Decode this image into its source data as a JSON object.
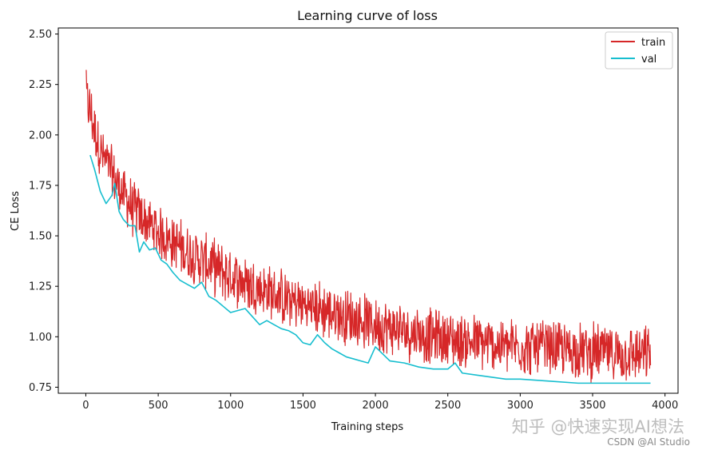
{
  "chart_data": {
    "type": "line",
    "title": "Learning curve of loss",
    "xlabel": "Training steps",
    "ylabel": "CE Loss",
    "xlim": [
      -190,
      4090
    ],
    "ylim": [
      0.72,
      2.53
    ],
    "xticks": [
      0,
      500,
      1000,
      1500,
      2000,
      2500,
      3000,
      3500,
      4000
    ],
    "xtick_labels": [
      "0",
      "500",
      "1000",
      "1500",
      "2000",
      "2500",
      "3000",
      "3500",
      "4000"
    ],
    "yticks": [
      0.75,
      1.0,
      1.25,
      1.5,
      1.75,
      2.0,
      2.25,
      2.5
    ],
    "ytick_labels": [
      "0.75",
      "1.00",
      "1.25",
      "1.50",
      "1.75",
      "2.00",
      "2.25",
      "2.50"
    ],
    "grid": false,
    "legend_position": "top-right",
    "series": [
      {
        "name": "train",
        "color": "#d62728",
        "x": [
          0,
          100,
          200,
          300,
          400,
          500,
          600,
          700,
          800,
          900,
          1000,
          1100,
          1200,
          1300,
          1400,
          1500,
          1600,
          1700,
          1800,
          1900,
          2000,
          2200,
          2400,
          2600,
          2800,
          3000,
          3200,
          3400,
          3600,
          3800,
          3900
        ],
        "values": [
          2.2,
          1.92,
          1.78,
          1.66,
          1.58,
          1.52,
          1.47,
          1.42,
          1.38,
          1.34,
          1.3,
          1.27,
          1.24,
          1.21,
          1.18,
          1.16,
          1.14,
          1.12,
          1.1,
          1.08,
          1.06,
          1.03,
          1.0,
          0.98,
          0.96,
          0.95,
          0.94,
          0.93,
          0.92,
          0.91,
          0.91
        ],
        "noise_amplitude_approx": 0.12,
        "peak": {
          "x": 0,
          "y": 2.32
        }
      },
      {
        "name": "val",
        "color": "#17becf",
        "x": [
          30,
          60,
          100,
          140,
          180,
          200,
          230,
          260,
          300,
          340,
          370,
          400,
          440,
          480,
          520,
          560,
          600,
          650,
          700,
          750,
          800,
          850,
          900,
          950,
          1000,
          1050,
          1100,
          1150,
          1200,
          1250,
          1300,
          1350,
          1400,
          1450,
          1500,
          1550,
          1600,
          1650,
          1700,
          1750,
          1800,
          1850,
          1900,
          1950,
          2000,
          2100,
          2200,
          2300,
          2400,
          2500,
          2550,
          2600,
          2700,
          2800,
          2900,
          3000,
          3200,
          3400,
          3600,
          3800,
          3900
        ],
        "values": [
          1.9,
          1.83,
          1.72,
          1.66,
          1.7,
          1.76,
          1.62,
          1.58,
          1.55,
          1.55,
          1.42,
          1.47,
          1.43,
          1.44,
          1.38,
          1.36,
          1.32,
          1.28,
          1.26,
          1.24,
          1.27,
          1.2,
          1.18,
          1.15,
          1.12,
          1.13,
          1.14,
          1.1,
          1.06,
          1.08,
          1.06,
          1.04,
          1.03,
          1.01,
          0.97,
          0.96,
          1.01,
          0.97,
          0.94,
          0.92,
          0.9,
          0.89,
          0.88,
          0.87,
          0.95,
          0.88,
          0.87,
          0.85,
          0.84,
          0.84,
          0.87,
          0.82,
          0.81,
          0.8,
          0.79,
          0.79,
          0.78,
          0.77,
          0.77,
          0.77,
          0.77
        ]
      }
    ]
  },
  "watermark": {
    "main": "知乎 @快速实现AI想法",
    "sub": "CSDN @AI Studio"
  }
}
